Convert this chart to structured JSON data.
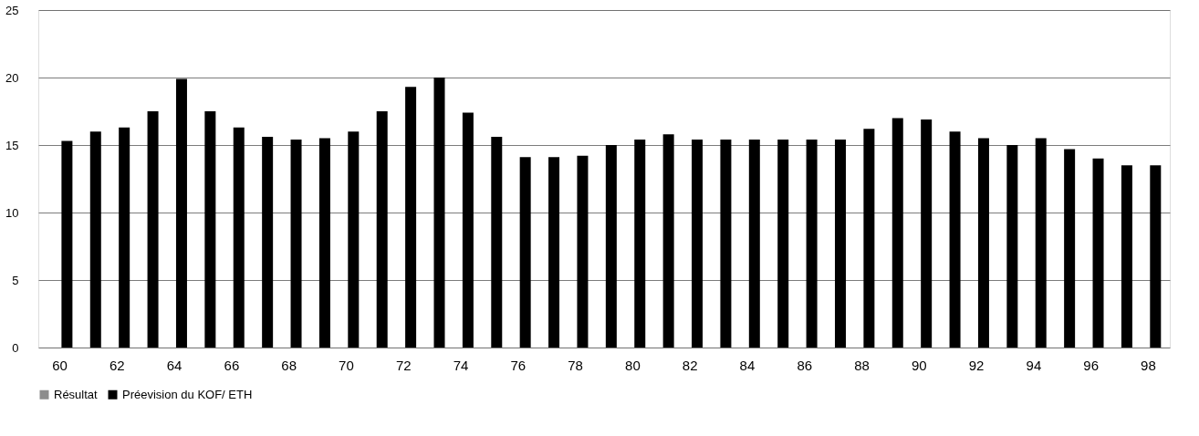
{
  "chart_data": {
    "type": "bar",
    "categories": [
      "60",
      null,
      "62",
      null,
      "64",
      null,
      "66",
      null,
      "68",
      null,
      "70",
      null,
      "72",
      null,
      "74",
      null,
      "76",
      null,
      "78",
      null,
      "80",
      null,
      "82",
      null,
      "84",
      null,
      "86",
      null,
      "88",
      null,
      "90",
      null,
      "92",
      null,
      "94",
      null,
      "96",
      null,
      "98"
    ],
    "series": [
      {
        "name": "Résultat",
        "color": "#8c8c8c",
        "values": [
          null,
          null,
          null,
          null,
          null,
          null,
          null,
          null,
          null,
          null,
          null,
          null,
          null,
          null,
          null,
          null,
          null,
          null,
          null,
          null,
          null,
          null,
          null,
          null,
          null,
          null,
          null,
          null,
          null,
          null,
          null,
          null,
          null,
          null,
          null,
          null,
          null,
          null,
          null
        ]
      },
      {
        "name": "Préevision du KOF/ ETH",
        "color": "#000000",
        "values": [
          15.3,
          16.0,
          16.3,
          17.5,
          19.9,
          17.5,
          16.3,
          15.6,
          15.4,
          15.5,
          16.0,
          17.5,
          19.3,
          20.0,
          17.4,
          15.6,
          14.1,
          14.1,
          14.2,
          15.0,
          15.4,
          15.8,
          15.4,
          15.4,
          15.4,
          15.4,
          15.4,
          15.4,
          16.2,
          17.0,
          16.9,
          16.0,
          15.5,
          15.0,
          15.5,
          14.7,
          14.0,
          13.5,
          13.5
        ]
      }
    ],
    "ylim": [
      0,
      25
    ],
    "yticks": [
      0,
      5,
      10,
      15,
      20,
      25
    ],
    "grid": "y",
    "legend": "bottom"
  }
}
